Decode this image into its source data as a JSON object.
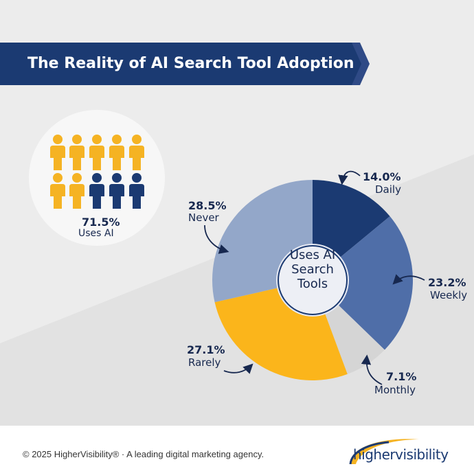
{
  "banner": {
    "title": "The Reality of AI Search Tool Adoption"
  },
  "people_stat": {
    "percent": "71.5%",
    "label": "Uses AI",
    "highlighted_count": 7,
    "total_count": 10,
    "highlight_color": "#f5b323",
    "base_color": "#1b3a72"
  },
  "chart_data": {
    "type": "pie",
    "center_label": [
      "Uses AI",
      "Search",
      "Tools"
    ],
    "slices": [
      {
        "label": "Daily",
        "value": 14.0,
        "display": "14.0%",
        "color": "#1b3a72"
      },
      {
        "label": "Weekly",
        "value": 23.2,
        "display": "23.2%",
        "color": "#4f6ea8"
      },
      {
        "label": "Monthly",
        "value": 7.1,
        "display": "7.1%",
        "color": "#d5d5d5"
      },
      {
        "label": "Rarely",
        "value": 27.1,
        "display": "27.1%",
        "color": "#fbb51b"
      },
      {
        "label": "Never",
        "value": 28.5,
        "display": "28.5%",
        "color": "#93a7c9"
      }
    ]
  },
  "footer": {
    "copyright": "© 2025 HigherVisibility® · A leading digital marketing agency.",
    "logo": "highervisibility"
  },
  "colors": {
    "background": "#ececec",
    "banner": "#1b3a72",
    "text_dark": "#17284f"
  }
}
